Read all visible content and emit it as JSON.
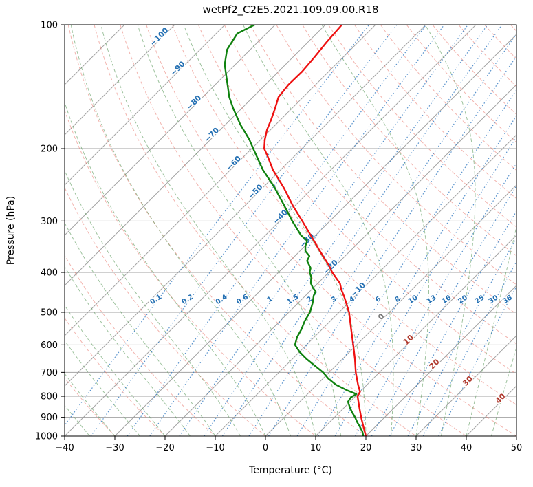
{
  "title": "wetPf2_C2E5.2021.109.09.00.R18",
  "axes": {
    "x": {
      "label": "Temperature (°C)",
      "ticks": [
        -40,
        -30,
        -20,
        -10,
        0,
        10,
        20,
        30,
        40,
        50
      ]
    },
    "y": {
      "label": "Pressure (hPa)",
      "ticks": [
        100,
        200,
        300,
        400,
        500,
        600,
        700,
        800,
        900,
        1000
      ],
      "scale": "log"
    }
  },
  "chart_data": {
    "type": "line",
    "subtype": "skew-t-log-p",
    "title": "wetPf2_C2E5.2021.109.09.00.R18",
    "xlabel": "Temperature (°C)",
    "ylabel": "Pressure (hPa)",
    "x_range": [
      -40,
      50
    ],
    "pressure_range": [
      100,
      1000
    ],
    "skew_degrees": 45,
    "grid": true,
    "legend": "none",
    "series": [
      {
        "name": "temperature",
        "color": "#ee1111",
        "width": 2.4,
        "units": {
          "p": "hPa",
          "t": "°C"
        },
        "points_p_t": [
          [
            1000,
            20.0
          ],
          [
            950,
            17.7
          ],
          [
            900,
            15.3
          ],
          [
            850,
            12.9
          ],
          [
            800,
            10.4
          ],
          [
            780,
            10.0
          ],
          [
            750,
            8.2
          ],
          [
            700,
            5.3
          ],
          [
            650,
            2.5
          ],
          [
            600,
            -0.7
          ],
          [
            550,
            -4.2
          ],
          [
            500,
            -8.0
          ],
          [
            460,
            -11.9
          ],
          [
            440,
            -14.1
          ],
          [
            425,
            -15.6
          ],
          [
            410,
            -17.8
          ],
          [
            400,
            -19.3
          ],
          [
            385,
            -21.3
          ],
          [
            370,
            -23.6
          ],
          [
            350,
            -26.8
          ],
          [
            330,
            -30.1
          ],
          [
            300,
            -35.5
          ],
          [
            275,
            -40.5
          ],
          [
            250,
            -45.6
          ],
          [
            225,
            -51.6
          ],
          [
            210,
            -55.0
          ],
          [
            200,
            -57.5
          ],
          [
            190,
            -59.2
          ],
          [
            180,
            -60.7
          ],
          [
            170,
            -61.9
          ],
          [
            160,
            -63.3
          ],
          [
            150,
            -64.9
          ],
          [
            140,
            -65.4
          ],
          [
            130,
            -65.3
          ],
          [
            120,
            -65.7
          ],
          [
            110,
            -66.3
          ],
          [
            100,
            -66.7
          ]
        ]
      },
      {
        "name": "dewpoint",
        "color": "#0f820f",
        "width": 2.4,
        "units": {
          "p": "hPa",
          "t": "°C"
        },
        "points_p_t": [
          [
            1000,
            19.5
          ],
          [
            975,
            18.4
          ],
          [
            950,
            17.0
          ],
          [
            925,
            15.5
          ],
          [
            900,
            14.1
          ],
          [
            875,
            12.5
          ],
          [
            850,
            11.0
          ],
          [
            825,
            9.6
          ],
          [
            805,
            9.3
          ],
          [
            790,
            9.7
          ],
          [
            775,
            7.3
          ],
          [
            750,
            3.8
          ],
          [
            725,
            1.1
          ],
          [
            700,
            -1.2
          ],
          [
            675,
            -4.1
          ],
          [
            650,
            -7.1
          ],
          [
            625,
            -9.9
          ],
          [
            600,
            -12.3
          ],
          [
            575,
            -13.4
          ],
          [
            550,
            -14.1
          ],
          [
            525,
            -15.1
          ],
          [
            500,
            -15.8
          ],
          [
            475,
            -17.1
          ],
          [
            455,
            -18.4
          ],
          [
            445,
            -18.8
          ],
          [
            435,
            -20.2
          ],
          [
            425,
            -21.4
          ],
          [
            410,
            -22.6
          ],
          [
            400,
            -23.8
          ],
          [
            390,
            -24.5
          ],
          [
            375,
            -26.6
          ],
          [
            365,
            -27.1
          ],
          [
            355,
            -28.9
          ],
          [
            345,
            -29.9
          ],
          [
            335,
            -30.6
          ],
          [
            325,
            -32.9
          ],
          [
            300,
            -37.5
          ],
          [
            275,
            -42.2
          ],
          [
            250,
            -47.4
          ],
          [
            225,
            -53.6
          ],
          [
            200,
            -59.7
          ],
          [
            190,
            -62.3
          ],
          [
            175,
            -67.0
          ],
          [
            160,
            -71.6
          ],
          [
            150,
            -74.7
          ],
          [
            140,
            -77.5
          ],
          [
            125,
            -82.1
          ],
          [
            115,
            -84.6
          ],
          [
            105,
            -85.8
          ],
          [
            100,
            -84.1
          ]
        ]
      }
    ],
    "isotherms": {
      "start": -110,
      "end": 50,
      "step": 10,
      "color": "#9b9b9b"
    },
    "dry_adiabats": {
      "start": -40,
      "end": 190,
      "step": 10,
      "color": "#e8766b"
    },
    "moist_adiabats": {
      "start": -40,
      "end": 45,
      "step": 5,
      "color": "#5d9b5d"
    },
    "mixing_ratios": {
      "values_g_kg": [
        0.1,
        0.2,
        0.4,
        0.6,
        1,
        1.5,
        2,
        3,
        4,
        6,
        8,
        10,
        13,
        16,
        20,
        25,
        30,
        36
      ],
      "labels": [
        "0.1",
        "0.2",
        "0.4",
        "0.6",
        "1",
        "1.5",
        "2",
        "3",
        "4",
        "6",
        "8",
        "10",
        "13",
        "16",
        "20",
        "25",
        "30",
        "36"
      ],
      "label_pressure_hpa": 470,
      "color": "#3b7fc4",
      "label_color": "#2470b3"
    },
    "isotherm_labels": [
      {
        "t": -100,
        "p": 108,
        "color": "#2470b3"
      },
      {
        "t": -90,
        "p": 129,
        "color": "#2470b3"
      },
      {
        "t": -80,
        "p": 156,
        "color": "#2470b3"
      },
      {
        "t": -70,
        "p": 187,
        "color": "#2470b3"
      },
      {
        "t": -60,
        "p": 219,
        "color": "#2470b3"
      },
      {
        "t": -50,
        "p": 257,
        "color": "#2470b3"
      },
      {
        "t": -40,
        "p": 296,
        "color": "#2470b3"
      },
      {
        "t": -30,
        "p": 338,
        "color": "#2470b3"
      },
      {
        "t": -20,
        "p": 392,
        "color": "#2470b3"
      },
      {
        "t": -10,
        "p": 445,
        "color": "#2470b3"
      },
      {
        "t": 0,
        "p": 518,
        "color": "#7a7a7a"
      },
      {
        "t": 10,
        "p": 589,
        "color": "#b03a2e"
      },
      {
        "t": 20,
        "p": 675,
        "color": "#b03a2e"
      },
      {
        "t": 30,
        "p": 742,
        "color": "#b03a2e"
      },
      {
        "t": 40,
        "p": 818,
        "color": "#b03a2e"
      }
    ]
  }
}
